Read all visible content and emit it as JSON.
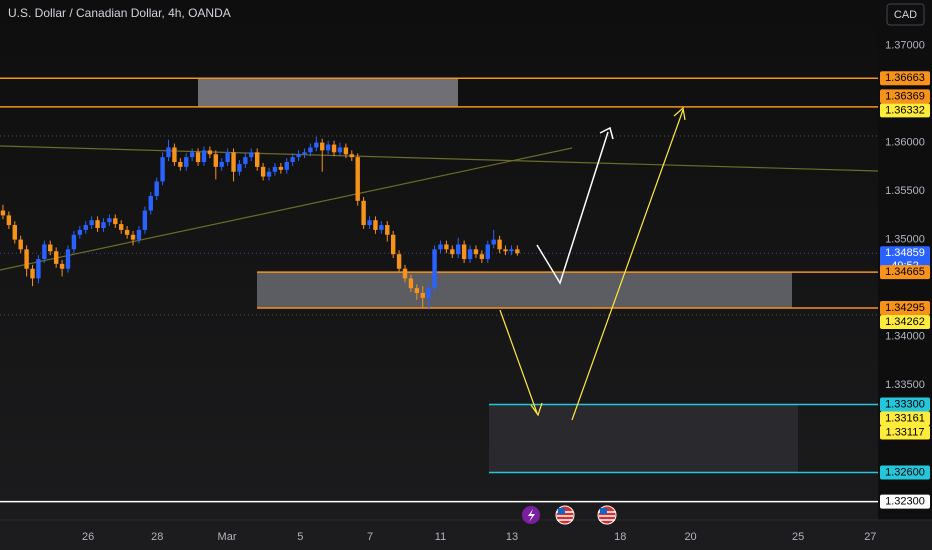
{
  "chart_data": {
    "type": "candlestick",
    "title": "U.S. Dollar / Canadian Dollar, 4h, OANDA",
    "currency_button": "CAD",
    "up_color": "#2962ff",
    "down_color": "#f7931a",
    "grid": false,
    "x": [
      0,
      1,
      2,
      3,
      4,
      5,
      6,
      7,
      8,
      9,
      10,
      11,
      12,
      13,
      14,
      15,
      16,
      17,
      18,
      19,
      20,
      21,
      22,
      23,
      24,
      25,
      26,
      27,
      28,
      29,
      30,
      31,
      32,
      33,
      34,
      35,
      36,
      37,
      38,
      39,
      40,
      41,
      42,
      43,
      44,
      45,
      46,
      47,
      48,
      49,
      50,
      51,
      52,
      53,
      54,
      55,
      56,
      57,
      58,
      59,
      60,
      61,
      62,
      63,
      64,
      65,
      66,
      67,
      68,
      69,
      70,
      71,
      72,
      73,
      74,
      75,
      76,
      77,
      78,
      79,
      80,
      81,
      82,
      83,
      84,
      85,
      86,
      87
    ],
    "ohlc": [
      [
        1.353,
        1.3536,
        1.3521,
        1.3525
      ],
      [
        1.3525,
        1.3529,
        1.3511,
        1.3515
      ],
      [
        1.3515,
        1.3519,
        1.3496,
        1.35
      ],
      [
        1.35,
        1.3504,
        1.3486,
        1.349
      ],
      [
        1.349,
        1.3494,
        1.3462,
        1.347
      ],
      [
        1.347,
        1.3474,
        1.3452,
        1.346
      ],
      [
        1.346,
        1.3484,
        1.3455,
        1.348
      ],
      [
        1.348,
        1.3499,
        1.3476,
        1.3495
      ],
      [
        1.3495,
        1.3499,
        1.3484,
        1.3488
      ],
      [
        1.3488,
        1.3492,
        1.3471,
        1.3475
      ],
      [
        1.3475,
        1.3479,
        1.3462,
        1.347
      ],
      [
        1.347,
        1.3494,
        1.3466,
        1.349
      ],
      [
        1.349,
        1.3509,
        1.3486,
        1.3505
      ],
      [
        1.3505,
        1.3514,
        1.3501,
        1.351
      ],
      [
        1.351,
        1.3519,
        1.3506,
        1.3515
      ],
      [
        1.3515,
        1.3524,
        1.3511,
        1.352
      ],
      [
        1.352,
        1.3524,
        1.3508,
        1.3512
      ],
      [
        1.3512,
        1.3522,
        1.3508,
        1.3518
      ],
      [
        1.3518,
        1.3526,
        1.3514,
        1.3522
      ],
      [
        1.3522,
        1.3526,
        1.3512,
        1.3516
      ],
      [
        1.3516,
        1.352,
        1.3506,
        1.351
      ],
      [
        1.351,
        1.3514,
        1.3501,
        1.3505
      ],
      [
        1.3505,
        1.3509,
        1.3494,
        1.35
      ],
      [
        1.35,
        1.3514,
        1.3496,
        1.351
      ],
      [
        1.351,
        1.3534,
        1.3506,
        1.353
      ],
      [
        1.353,
        1.3549,
        1.3526,
        1.3545
      ],
      [
        1.3545,
        1.3564,
        1.3541,
        1.356
      ],
      [
        1.356,
        1.359,
        1.3556,
        1.3585
      ],
      [
        1.3585,
        1.3603,
        1.3581,
        1.3595
      ],
      [
        1.3595,
        1.3599,
        1.3576,
        1.358
      ],
      [
        1.358,
        1.3584,
        1.3571,
        1.3575
      ],
      [
        1.3575,
        1.3589,
        1.3571,
        1.3585
      ],
      [
        1.3585,
        1.3594,
        1.3581,
        1.359
      ],
      [
        1.359,
        1.3594,
        1.3576,
        1.358
      ],
      [
        1.358,
        1.3596,
        1.3576,
        1.3592
      ],
      [
        1.3592,
        1.3596,
        1.3584,
        1.3588
      ],
      [
        1.3588,
        1.3592,
        1.3562,
        1.3575
      ],
      [
        1.3575,
        1.3584,
        1.3571,
        1.358
      ],
      [
        1.358,
        1.3594,
        1.3576,
        1.359
      ],
      [
        1.359,
        1.3594,
        1.356,
        1.357
      ],
      [
        1.357,
        1.3582,
        1.3566,
        1.3578
      ],
      [
        1.3578,
        1.3589,
        1.3574,
        1.3585
      ],
      [
        1.3585,
        1.3594,
        1.3581,
        1.359
      ],
      [
        1.359,
        1.3594,
        1.3571,
        1.3575
      ],
      [
        1.3575,
        1.3579,
        1.3561,
        1.3565
      ],
      [
        1.3565,
        1.3574,
        1.3561,
        1.357
      ],
      [
        1.357,
        1.3579,
        1.3566,
        1.3575
      ],
      [
        1.3575,
        1.3579,
        1.3568,
        1.3572
      ],
      [
        1.3572,
        1.3584,
        1.3568,
        1.358
      ],
      [
        1.358,
        1.3589,
        1.3576,
        1.3585
      ],
      [
        1.3585,
        1.3592,
        1.3581,
        1.3588
      ],
      [
        1.3588,
        1.3594,
        1.3584,
        1.359
      ],
      [
        1.359,
        1.3599,
        1.3586,
        1.3595
      ],
      [
        1.3595,
        1.3606,
        1.3591,
        1.36
      ],
      [
        1.36,
        1.3604,
        1.357,
        1.3592
      ],
      [
        1.3592,
        1.3602,
        1.3588,
        1.3598
      ],
      [
        1.3598,
        1.3602,
        1.3586,
        1.359
      ],
      [
        1.359,
        1.36,
        1.3586,
        1.3595
      ],
      [
        1.3595,
        1.3599,
        1.3584,
        1.3588
      ],
      [
        1.3588,
        1.3592,
        1.3581,
        1.3585
      ],
      [
        1.3585,
        1.3589,
        1.3535,
        1.354
      ],
      [
        1.354,
        1.3544,
        1.3511,
        1.3515
      ],
      [
        1.3515,
        1.3524,
        1.3511,
        1.352
      ],
      [
        1.352,
        1.3524,
        1.3506,
        1.351
      ],
      [
        1.351,
        1.3519,
        1.3506,
        1.3515
      ],
      [
        1.3515,
        1.3519,
        1.3498,
        1.3505
      ],
      [
        1.3505,
        1.3509,
        1.3481,
        1.3485
      ],
      [
        1.3485,
        1.3489,
        1.3466,
        1.347
      ],
      [
        1.347,
        1.3474,
        1.3456,
        1.346
      ],
      [
        1.346,
        1.3464,
        1.3446,
        1.345
      ],
      [
        1.345,
        1.3454,
        1.3438,
        1.3445
      ],
      [
        1.3445,
        1.3452,
        1.343,
        1.344
      ],
      [
        1.344,
        1.3455,
        1.3428,
        1.345
      ],
      [
        1.345,
        1.3494,
        1.3446,
        1.349
      ],
      [
        1.349,
        1.3499,
        1.3486,
        1.3495
      ],
      [
        1.3495,
        1.3499,
        1.3486,
        1.349
      ],
      [
        1.349,
        1.3494,
        1.3481,
        1.3485
      ],
      [
        1.3485,
        1.3502,
        1.3481,
        1.3495
      ],
      [
        1.3495,
        1.3499,
        1.3476,
        1.348
      ],
      [
        1.348,
        1.3494,
        1.3476,
        1.349
      ],
      [
        1.349,
        1.3494,
        1.3481,
        1.3485
      ],
      [
        1.3485,
        1.3489,
        1.3476,
        1.348
      ],
      [
        1.348,
        1.3499,
        1.3476,
        1.3495
      ],
      [
        1.3495,
        1.351,
        1.3491,
        1.35
      ],
      [
        1.35,
        1.3504,
        1.3486,
        1.349
      ],
      [
        1.349,
        1.3494,
        1.3484,
        1.3488
      ],
      [
        1.3488,
        1.3494,
        1.3484,
        1.349
      ],
      [
        1.349,
        1.3494,
        1.34835,
        1.34859
      ]
    ],
    "xlim": [
      -0.5,
      148
    ],
    "xticks": [
      {
        "value": 14.4,
        "label": "26"
      },
      {
        "value": 26.1,
        "label": "28"
      },
      {
        "value": 37.9,
        "label": "Mar"
      },
      {
        "value": 50.3,
        "label": "5"
      },
      {
        "value": 62.1,
        "label": "7"
      },
      {
        "value": 74,
        "label": "11"
      },
      {
        "value": 86.1,
        "label": "13"
      },
      {
        "value": 104.4,
        "label": "18"
      },
      {
        "value": 116.3,
        "label": "20"
      },
      {
        "value": 134.5,
        "label": "25"
      },
      {
        "value": 146.7,
        "label": "27"
      }
    ],
    "ylim": [
      1.3211,
      1.3747
    ],
    "yticks": [
      {
        "value": 1.37,
        "label": "1.37000"
      },
      {
        "value": 1.36,
        "label": "1.36000"
      },
      {
        "value": 1.355,
        "label": "1.35500"
      },
      {
        "value": 1.35,
        "label": "1.35000"
      },
      {
        "value": 1.34,
        "label": "1.34000"
      },
      {
        "value": 1.335,
        "label": "1.33500"
      }
    ],
    "current_price": {
      "value": 1.34859,
      "label": "1.34859",
      "countdown": "49:52",
      "color": "#2962ff"
    },
    "levels": [
      {
        "value": 1.36332,
        "label": "1.36332",
        "color": "#ffeb3b"
      },
      {
        "value": 1.36369,
        "label": "1.36369",
        "color": "#f7931a"
      },
      {
        "value": 1.36663,
        "label": "1.36663",
        "color": "#f7931a"
      },
      {
        "value": 1.34665,
        "label": "1.34665",
        "color": "#f7931a"
      },
      {
        "value": 1.34295,
        "label": "1.34295",
        "color": "#f7931a"
      },
      {
        "value": 1.34262,
        "label": "1.34262",
        "color": "#ffeb3b"
      },
      {
        "value": 1.333,
        "label": "1.33300",
        "color": "#26c6da"
      },
      {
        "value": 1.33161,
        "label": "1.33161",
        "color": "#ffeb3b"
      },
      {
        "value": 1.33117,
        "label": "1.33117",
        "color": "#ffeb3b"
      },
      {
        "value": 1.326,
        "label": "1.32600",
        "color": "#26c6da"
      },
      {
        "value": 1.323,
        "label": "1.32300",
        "color": "#ffffff"
      }
    ]
  }
}
